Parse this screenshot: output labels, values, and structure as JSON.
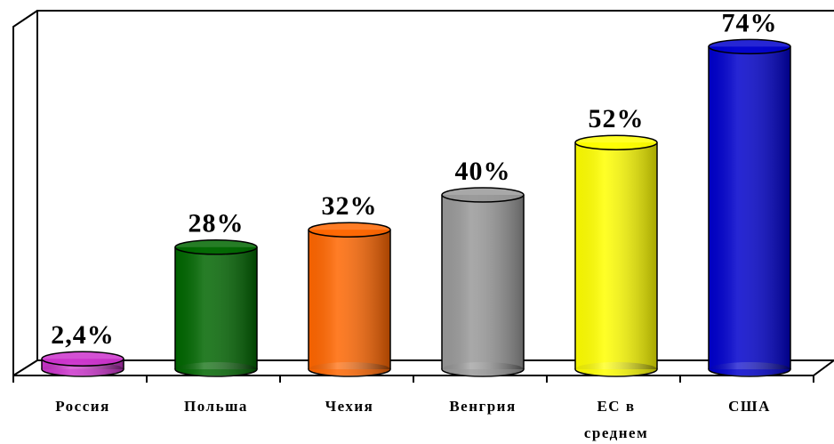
{
  "chart_data": {
    "type": "cylinder-bar",
    "categories": [
      "Россия",
      "Польша",
      "Чехия",
      "Венгрия",
      "ЕС в\nсреднем",
      "США"
    ],
    "values": [
      2.4,
      28,
      32,
      40,
      52,
      74
    ],
    "value_labels": [
      "2,4%",
      "28%",
      "32%",
      "40%",
      "52%",
      "74%"
    ],
    "colors": [
      "#cc33cc",
      "#006600",
      "#ff6600",
      "#999999",
      "#ffff00",
      "#0000cc"
    ]
  }
}
